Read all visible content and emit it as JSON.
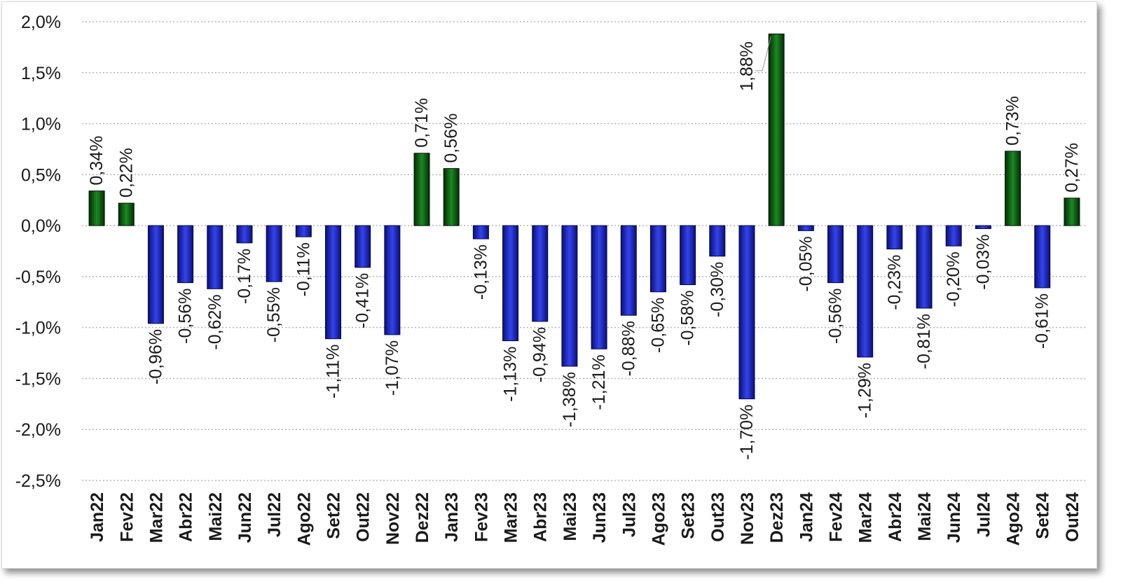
{
  "chart_data": {
    "type": "bar",
    "title": "",
    "xlabel": "",
    "ylabel": "",
    "ylim": [
      -2.5,
      2.0
    ],
    "yticks": [
      2.0,
      1.5,
      1.0,
      0.5,
      0.0,
      -0.5,
      -1.0,
      -1.5,
      -2.0,
      -2.5
    ],
    "ytick_labels": [
      "2,0%",
      "1,5%",
      "1,0%",
      "0,5%",
      "0,0%",
      "-0,5%",
      "-1,0%",
      "-1,5%",
      "-2,0%",
      "-2,5%"
    ],
    "grid": true,
    "legend": "none",
    "colors": {
      "positive": "#0b6b14",
      "negative": "#1f2fd0"
    },
    "categories": [
      "Jan22",
      "Fev22",
      "Mar22",
      "Abr22",
      "Mai22",
      "Jun22",
      "Jul22",
      "Ago22",
      "Set22",
      "Out22",
      "Nov22",
      "Dez22",
      "Jan23",
      "Fev23",
      "Mar23",
      "Abr23",
      "Mai23",
      "Jun23",
      "Jul23",
      "Ago23",
      "Set23",
      "Out23",
      "Nov23",
      "Dez23",
      "Jan24",
      "Fev24",
      "Mar24",
      "Abr24",
      "Mai24",
      "Jun24",
      "Jul24",
      "Ago24",
      "Set24",
      "Out24"
    ],
    "values": [
      0.34,
      0.22,
      -0.96,
      -0.56,
      -0.62,
      -0.17,
      -0.55,
      -0.11,
      -1.11,
      -0.41,
      -1.07,
      0.71,
      0.56,
      -0.13,
      -1.13,
      -0.94,
      -1.38,
      -1.21,
      -0.88,
      -0.65,
      -0.58,
      -0.3,
      -1.7,
      1.88,
      -0.05,
      -0.56,
      -1.29,
      -0.23,
      -0.81,
      -0.2,
      -0.03,
      0.73,
      -0.61,
      0.27
    ],
    "data_labels": [
      "0,34%",
      "0,22%",
      "-0,96%",
      "-0,56%",
      "-0,62%",
      "-0,17%",
      "-0,55%",
      "-0,11%",
      "-1,11%",
      "-0,41%",
      "-1,07%",
      "0,71%",
      "0,56%",
      "-0,13%",
      "-1,13%",
      "-0,94%",
      "-1,38%",
      "-1,21%",
      "-0,88%",
      "-0,65%",
      "-0,58%",
      "-0,30%",
      "-1,70%",
      "1,88%",
      "-0,05%",
      "-0,56%",
      "-1,29%",
      "-0,23%",
      "-0,81%",
      "-0,20%",
      "-0,03%",
      "0,73%",
      "-0,61%",
      "0,27%"
    ]
  }
}
